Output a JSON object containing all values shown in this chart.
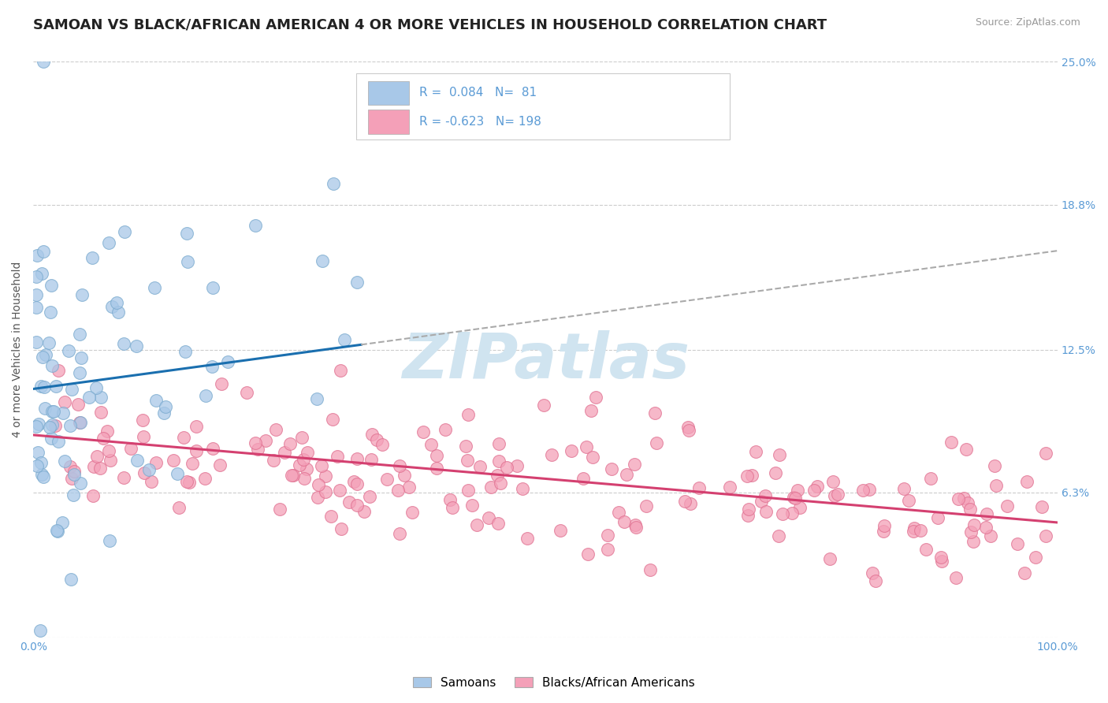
{
  "title": "SAMOAN VS BLACK/AFRICAN AMERICAN 4 OR MORE VEHICLES IN HOUSEHOLD CORRELATION CHART",
  "source": "Source: ZipAtlas.com",
  "ylabel": "4 or more Vehicles in Household",
  "xlim": [
    0.0,
    100.0
  ],
  "ylim": [
    0.0,
    25.0
  ],
  "yticks": [
    0.0,
    6.3,
    12.5,
    18.8,
    25.0
  ],
  "ytick_labels": [
    "",
    "6.3%",
    "12.5%",
    "18.8%",
    "25.0%"
  ],
  "blue_R": 0.084,
  "blue_N": 81,
  "pink_R": -0.623,
  "pink_N": 198,
  "blue_label": "Samoans",
  "pink_label": "Blacks/African Americans",
  "blue_color": "#a8c8e8",
  "pink_color": "#f4a0b8",
  "blue_edge_color": "#7aaace",
  "pink_edge_color": "#e07090",
  "blue_line_color": "#1a6faf",
  "pink_line_color": "#d44070",
  "dashed_line_color": "#aaaaaa",
  "watermark": "ZIPatlas",
  "watermark_color": "#d0e4f0",
  "title_color": "#222222",
  "axis_label_color": "#5b9bd5",
  "grid_color": "#cccccc",
  "blue_scatter_seed": 42,
  "pink_scatter_seed": 77,
  "figsize": [
    14.06,
    8.92
  ],
  "dpi": 100,
  "blue_intercept": 10.8,
  "blue_slope": 0.06,
  "pink_intercept": 8.8,
  "pink_slope": -0.038
}
